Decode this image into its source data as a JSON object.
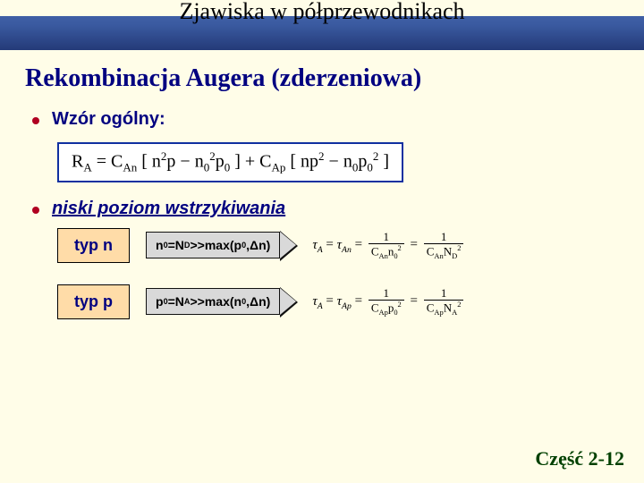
{
  "colors": {
    "background": "#fffde8",
    "heading": "#000080",
    "bullet": "#b00020",
    "footer": "#004000",
    "type_box_bg": "#ffdca8",
    "arrow_bg": "#d9d9d9",
    "formula_border": "#1030a0",
    "title_gradient_from": "#4a6ab0",
    "title_gradient_to": "#243a78"
  },
  "title": "Zjawiska w półprzewodnikach",
  "section_heading": "Rekombinacja Augera (zderzeniowa)",
  "bullets": {
    "general": {
      "label": "Wzór ogólny:"
    },
    "injection": {
      "label": "niski poziom wstrzykiwania"
    }
  },
  "formula_main": {
    "text": "R_A = C_An [ n^2 p − n_0^2 p_0 ] + C_Ap [ n p^2 − n_0 p_0^2 ]"
  },
  "rows": {
    "n": {
      "type_label": "typ n",
      "condition": "n_0=N_D>>max(p_0,Δn)",
      "tau": "τ_A = τ_An = 1 / (C_An n_0^2) = 1 / (C_An N_D^2)"
    },
    "p": {
      "type_label": "typ p",
      "condition": "p_0=N_A>>max(n_0,Δn)",
      "tau": "τ_A = τ_Ap = 1 / (C_Ap p_0^2) = 1 / (C_Ap N_A^2)"
    }
  },
  "footer": "Część 2-12"
}
